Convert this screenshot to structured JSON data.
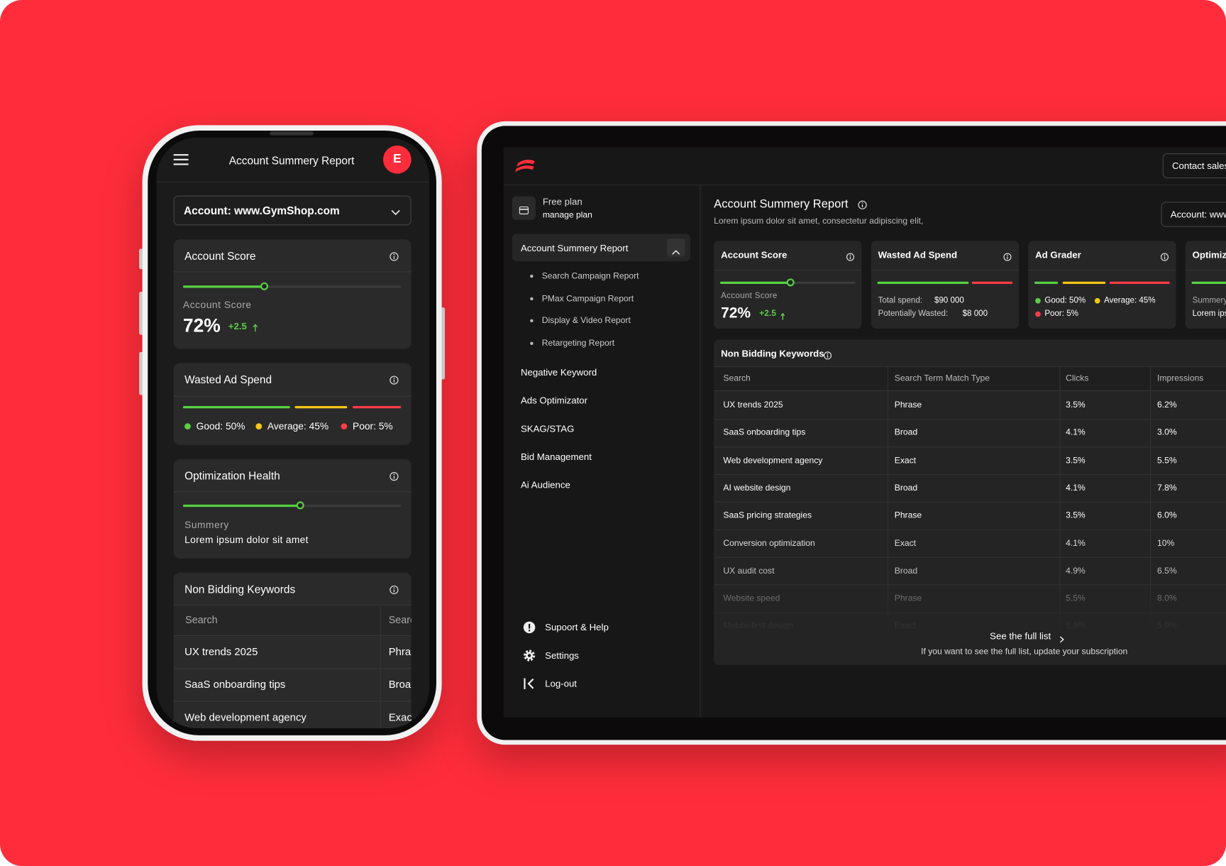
{
  "report": {
    "title": "Account Summery Report",
    "account": "Account: www.GymShop.com",
    "account_score": {
      "title": "Account Score",
      "label": "Account Score",
      "value": "72%",
      "change": "+2.5"
    },
    "wasted": {
      "title": "Wasted Ad Spend",
      "total_label": "Total spend:",
      "total": "$90 000",
      "wasted_label": "Potentially Wasted:",
      "wasted": "$8 000"
    },
    "ad_grader": {
      "title": "Ad Grader",
      "legend": [
        "Good: 50%",
        "Average: 45%",
        "Poor: 5%"
      ]
    },
    "optimization": {
      "title": "Optimization Health",
      "label": "Summery",
      "text": "Lorem ipsum dolor sit amet"
    },
    "keywords": {
      "title": "Non Bidding Keywords",
      "columns": [
        "Search",
        "Search Term Match Type",
        "Clicks",
        "Impressions"
      ],
      "rows": [
        [
          "UX trends 2025",
          "Phrase",
          "3.5%",
          "6.2%"
        ],
        [
          "SaaS onboarding tips",
          "Broad",
          "4.1%",
          "3.0%"
        ],
        [
          "Web development agency",
          "Exact",
          "3.5%",
          "5.5%"
        ],
        [
          "AI website design",
          "Broad",
          "4.1%",
          "7.8%"
        ],
        [
          "SaaS pricing strategies",
          "Phrase",
          "3.5%",
          "6.0%"
        ],
        [
          "Conversion optimization",
          "Exact",
          "4.1%",
          "10%"
        ],
        [
          "UX audit cost",
          "Broad",
          "4.9%",
          "6.5%"
        ],
        [
          "Website speed",
          "Phrase",
          "5.5%",
          "8.0%"
        ],
        [
          "Mobile-first design",
          "Exact",
          "5.9%",
          "5.9%"
        ]
      ],
      "see_all": "See the full list",
      "upgrade_note": "If you want to see the full list, update your subscription"
    }
  },
  "mobile": {
    "avatar": "E"
  },
  "tablet": {
    "contact": "Contact sales",
    "plan": "Free plan",
    "manage": "manage plan",
    "subtitle": "Lorem ipsum dolor sit amet, consectetur adipiscing elit,",
    "sub_reports": [
      "Search Campaign Report",
      "PMax Campaign Report",
      "Display & Video Report",
      "Retargeting Report"
    ],
    "nav": [
      "Negative Keyword",
      "Ads Optimizator",
      "SKAG/STAG",
      "Bid Management",
      "Ai Audience"
    ],
    "footer_nav": [
      "Supoort & Help",
      "Settings",
      "Log-out"
    ]
  }
}
